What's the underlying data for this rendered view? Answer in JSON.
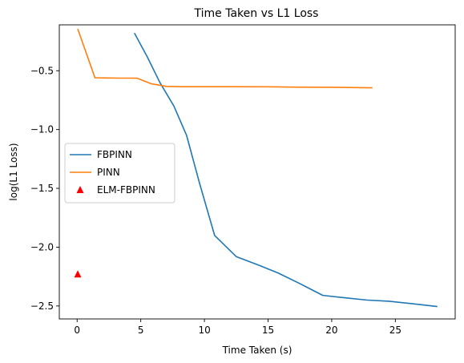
{
  "chart_data": {
    "type": "line",
    "title": "Time Taken vs L1 Loss",
    "xlabel": "Time Taken (s)",
    "ylabel": "log(L1 Loss)",
    "xlim": [
      -1.4,
      29.7
    ],
    "ylim": [
      -2.61,
      -0.11
    ],
    "xticks": [
      0,
      5,
      10,
      15,
      20,
      25
    ],
    "xtick_labels": [
      "0",
      "5",
      "10",
      "15",
      "20",
      "25"
    ],
    "yticks": [
      -2.5,
      -2.0,
      -1.5,
      -1.0,
      -0.5
    ],
    "ytick_labels": [
      "−2.5",
      "−2.0",
      "−1.5",
      "−1.0",
      "−0.5"
    ],
    "grid": false,
    "legend_position": "center-left",
    "series": [
      {
        "name": "FBPINN",
        "kind": "line",
        "color": "#1f77b4",
        "x": [
          4.5,
          5.5,
          6.5,
          7.6,
          8.6,
          9.6,
          10.8,
          12.5,
          14.2,
          15.8,
          17.5,
          19.3,
          21.0,
          22.8,
          24.5,
          26.3,
          28.3
        ],
        "y": [
          -0.18,
          -0.38,
          -0.6,
          -0.8,
          -1.05,
          -1.45,
          -1.9,
          -2.08,
          -2.15,
          -2.22,
          -2.31,
          -2.41,
          -2.43,
          -2.45,
          -2.46,
          -2.48,
          -2.505
        ]
      },
      {
        "name": "PINN",
        "kind": "line",
        "color": "#ff7f0e",
        "x": [
          0.05,
          1.4,
          2.3,
          3.5,
          4.7,
          5.8,
          7.0,
          8.2,
          10.0,
          12.0,
          15.0,
          17.5,
          20.0,
          23.2
        ],
        "y": [
          -0.145,
          -0.56,
          -0.562,
          -0.563,
          -0.563,
          -0.61,
          -0.633,
          -0.636,
          -0.636,
          -0.636,
          -0.637,
          -0.64,
          -0.641,
          -0.645
        ]
      },
      {
        "name": "ELM-FBPINN",
        "kind": "marker",
        "marker": "triangle",
        "color": "#ff0000",
        "x": [
          0.05
        ],
        "y": [
          -2.23
        ]
      }
    ]
  }
}
